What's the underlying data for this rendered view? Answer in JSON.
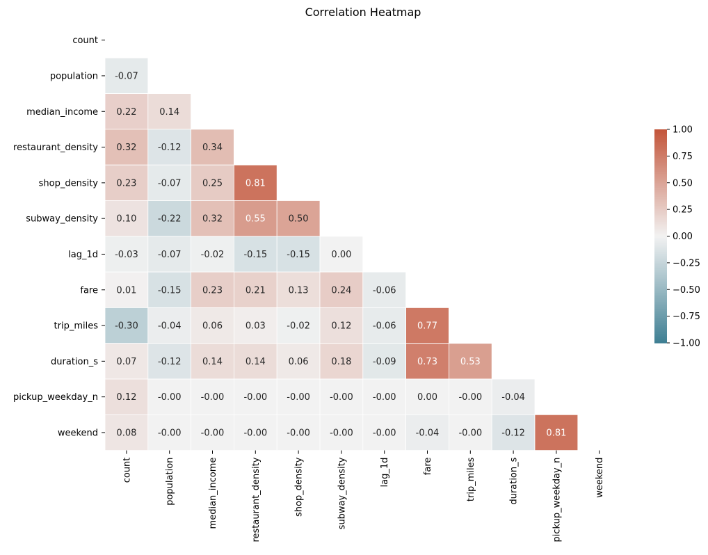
{
  "chart_data": {
    "type": "heatmap",
    "title": "Correlation Heatmap",
    "xlabel": "",
    "ylabel": "",
    "variables": [
      "count",
      "population",
      "median_income",
      "restaurant_density",
      "shop_density",
      "subway_density",
      "lag_1d",
      "fare",
      "trip_miles",
      "duration_s",
      "pickup_weekday_n",
      "weekend"
    ],
    "mask": "upper-triangle-including-diagonal",
    "values": [
      [
        null,
        null,
        null,
        null,
        null,
        null,
        null,
        null,
        null,
        null,
        null,
        null
      ],
      [
        -0.07,
        null,
        null,
        null,
        null,
        null,
        null,
        null,
        null,
        null,
        null,
        null
      ],
      [
        0.22,
        0.14,
        null,
        null,
        null,
        null,
        null,
        null,
        null,
        null,
        null,
        null
      ],
      [
        0.32,
        -0.12,
        0.34,
        null,
        null,
        null,
        null,
        null,
        null,
        null,
        null,
        null
      ],
      [
        0.23,
        -0.07,
        0.25,
        0.81,
        null,
        null,
        null,
        null,
        null,
        null,
        null,
        null
      ],
      [
        0.1,
        -0.22,
        0.32,
        0.55,
        0.5,
        null,
        null,
        null,
        null,
        null,
        null,
        null
      ],
      [
        -0.03,
        -0.07,
        -0.02,
        -0.15,
        -0.15,
        0.0,
        null,
        null,
        null,
        null,
        null,
        null
      ],
      [
        0.01,
        -0.15,
        0.23,
        0.21,
        0.13,
        0.24,
        -0.06,
        null,
        null,
        null,
        null,
        null
      ],
      [
        -0.3,
        -0.04,
        0.06,
        0.03,
        -0.02,
        0.12,
        -0.06,
        0.77,
        null,
        null,
        null,
        null
      ],
      [
        0.07,
        -0.12,
        0.14,
        0.14,
        0.06,
        0.18,
        -0.09,
        0.73,
        0.53,
        null,
        null,
        null
      ],
      [
        0.12,
        -0.0,
        -0.0,
        -0.0,
        -0.0,
        -0.0,
        -0.0,
        0.0,
        -0.0,
        -0.04,
        null,
        null
      ],
      [
        0.08,
        -0.0,
        -0.0,
        -0.0,
        -0.0,
        -0.0,
        -0.0,
        -0.04,
        -0.0,
        -0.12,
        0.81,
        null
      ]
    ],
    "display_values": [
      [],
      [
        "-0.07"
      ],
      [
        "0.22",
        "0.14"
      ],
      [
        "0.32",
        "-0.12",
        "0.34"
      ],
      [
        "0.23",
        "-0.07",
        "0.25",
        "0.81"
      ],
      [
        "0.10",
        "-0.22",
        "0.32",
        "0.55",
        "0.50"
      ],
      [
        "-0.03",
        "-0.07",
        "-0.02",
        "-0.15",
        "-0.15",
        "0.00"
      ],
      [
        "0.01",
        "-0.15",
        "0.23",
        "0.21",
        "0.13",
        "0.24",
        "-0.06"
      ],
      [
        "-0.30",
        "-0.04",
        "0.06",
        "0.03",
        "-0.02",
        "0.12",
        "-0.06",
        "0.77"
      ],
      [
        "0.07",
        "-0.12",
        "0.14",
        "0.14",
        "0.06",
        "0.18",
        "-0.09",
        "0.73",
        "0.53"
      ],
      [
        "0.12",
        "-0.00",
        "-0.00",
        "-0.00",
        "-0.00",
        "-0.00",
        "-0.00",
        "0.00",
        "-0.00",
        "-0.04"
      ],
      [
        "0.08",
        "-0.00",
        "-0.00",
        "-0.00",
        "-0.00",
        "-0.00",
        "-0.00",
        "-0.04",
        "-0.00",
        "-0.12",
        "0.81"
      ]
    ],
    "colorbar": {
      "range": [
        -1,
        1
      ],
      "ticks": [
        "1.00",
        "0.75",
        "0.50",
        "0.25",
        "0.00",
        "−0.25",
        "−0.50",
        "−0.75",
        "−1.00"
      ],
      "tick_values": [
        1,
        0.75,
        0.5,
        0.25,
        0,
        -0.25,
        -0.5,
        -0.75,
        -1
      ],
      "placement": "right"
    },
    "colors": {
      "negative": "#3f7f93",
      "neutral": "#f2f2f2",
      "positive": "#c3553a",
      "text_dark": "#262626",
      "text_light": "#ffffff"
    },
    "grid": false
  }
}
